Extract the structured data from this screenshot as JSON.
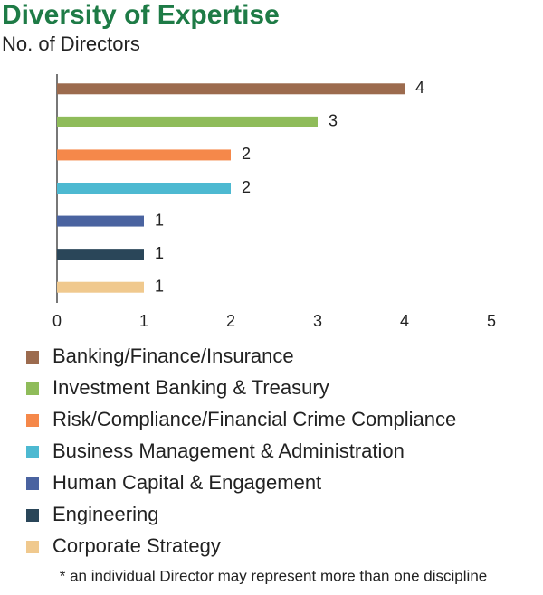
{
  "chart_data": {
    "type": "bar",
    "orientation": "horizontal",
    "title": "Diversity of Expertise",
    "subtitle": "No. of Directors",
    "categories": [
      "Banking/Finance/Insurance",
      "Investment Banking & Treasury",
      "Risk/Compliance/Financial Crime Compliance",
      "Business Management & Administration",
      "Human Capital & Engagement",
      "Engineering",
      "Corporate Strategy"
    ],
    "values": [
      4,
      3,
      2,
      2,
      1,
      1,
      1
    ],
    "colors": [
      "#9c6b4e",
      "#8fbc5a",
      "#f5884a",
      "#4db9d1",
      "#4a63a0",
      "#2a4659",
      "#f0c98e"
    ],
    "xlim": [
      0,
      5
    ],
    "xticks": [
      0,
      1,
      2,
      3,
      4,
      5
    ],
    "footnote": "* an individual Director may represent more than one discipline"
  }
}
